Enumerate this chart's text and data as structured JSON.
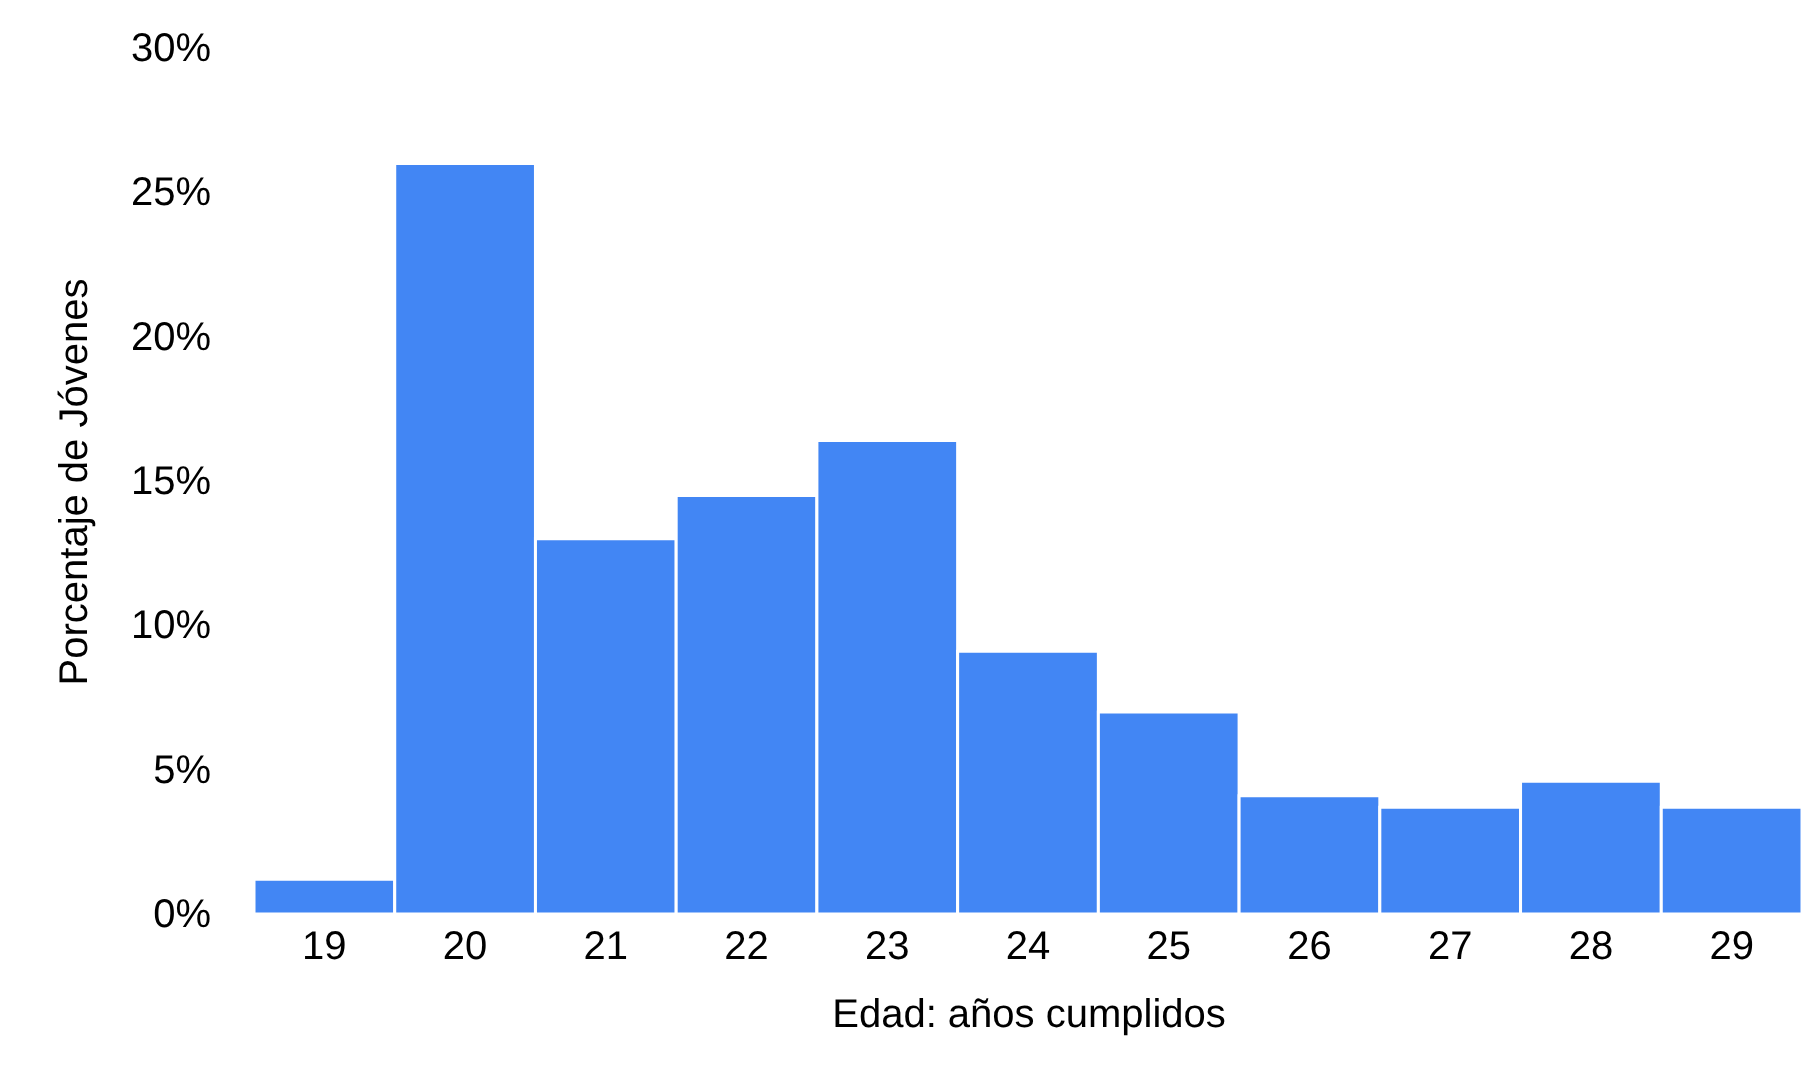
{
  "chart_data": {
    "type": "bar",
    "xlabel": "Edad: años cumplidos",
    "ylabel": "Porcentaje de Jóvenes",
    "categories": [
      "19",
      "20",
      "21",
      "22",
      "23",
      "24",
      "25",
      "26",
      "27",
      "28",
      "29"
    ],
    "values": [
      1.2,
      26,
      13,
      14.5,
      16.4,
      9.1,
      7,
      4.1,
      3.7,
      4.6,
      3.7
    ],
    "color": "#4286f4",
    "ylim": [
      0,
      30
    ],
    "yticks": [
      {
        "value": 0,
        "label": "0%"
      },
      {
        "value": 5,
        "label": "5%"
      },
      {
        "value": 10,
        "label": "10%"
      },
      {
        "value": 15,
        "label": "15%"
      },
      {
        "value": 20,
        "label": "20%"
      },
      {
        "value": 25,
        "label": "25%"
      },
      {
        "value": 30,
        "label": "30%"
      }
    ],
    "grid": false
  }
}
